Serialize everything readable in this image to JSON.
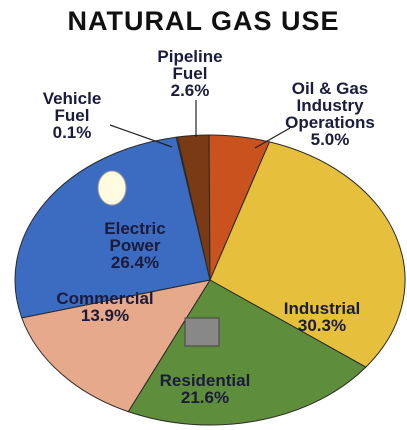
{
  "chart_data": {
    "type": "pie",
    "title": "NATURAL GAS USE",
    "categories": [
      "Vehicle Fuel",
      "Pipeline Fuel",
      "Oil & Gas Industry Operations",
      "Industrial",
      "Residential",
      "Commercial",
      "Electric Power"
    ],
    "values": [
      0.1,
      2.6,
      5.0,
      30.3,
      21.6,
      13.9,
      26.4
    ],
    "value_labels": [
      "0.1%",
      "2.6%",
      "5.0%",
      "30.3%",
      "21.6%",
      "13.9%",
      "26.4%"
    ],
    "colors": [
      "#f3e01c",
      "#7a3a14",
      "#c9521f",
      "#e6c03c",
      "#5e8e3c",
      "#e7a98b",
      "#3b6cc2"
    ]
  }
}
